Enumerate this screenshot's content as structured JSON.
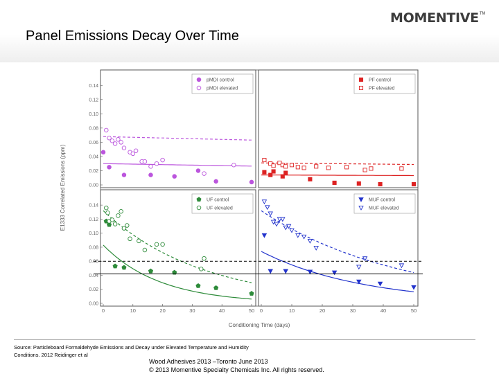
{
  "slide": {
    "title": "Panel Emissions Decay Over Time",
    "logo_text": "MOMENTIVE",
    "logo_tm": "TM",
    "source_line1": "Source: Particleboard Formaldehyde Emissions and Decay under Elevated Temperature and Humidity",
    "source_line2": "Conditions.  2012 Reidinger et al",
    "footer_line1": "Wood Adhesives 2013 –Toronto June 2013",
    "footer_line2": "© 2013 Momentive Specialty Chemicals Inc. All rights reserved."
  },
  "chart_data": {
    "type": "scatter",
    "ylabel": "E1333 Correlated Emissions (ppm)",
    "xlabel": "Conditioning Time (days)",
    "xlim": [
      0,
      50
    ],
    "ylim": [
      0,
      0.15
    ],
    "x_ticks": [
      "0",
      "10",
      "20",
      "30",
      "40",
      "50"
    ],
    "y_ticks": [
      "0.00",
      "0.02",
      "0.04",
      "0.06",
      "0.08",
      "0.10",
      "0.12",
      "0.14"
    ],
    "reference_lines": [
      {
        "y": 0.06,
        "style": "dashed"
      },
      {
        "y": 0.042,
        "style": "solid"
      }
    ],
    "panels": [
      {
        "color": "#bb55dd",
        "legend_position": "top-right",
        "series": [
          {
            "name": "pMDI control",
            "marker": "circle",
            "filled": true,
            "points": [
              [
                0,
                0.046
              ],
              [
                2,
                0.025
              ],
              [
                7,
                0.014
              ],
              [
                16,
                0.014
              ],
              [
                24,
                0.012
              ],
              [
                32,
                0.02
              ],
              [
                38,
                0.005
              ],
              [
                50,
                0.004
              ]
            ],
            "fit": [
              0.03,
              0.0025
            ]
          },
          {
            "name": "pMDI elevated",
            "marker": "circle",
            "filled": false,
            "points": [
              [
                1,
                0.077
              ],
              [
                2,
                0.066
              ],
              [
                3,
                0.062
              ],
              [
                4,
                0.058
              ],
              [
                5,
                0.064
              ],
              [
                6,
                0.06
              ],
              [
                7,
                0.052
              ],
              [
                9,
                0.046
              ],
              [
                10,
                0.044
              ],
              [
                11,
                0.048
              ],
              [
                13,
                0.033
              ],
              [
                14,
                0.033
              ],
              [
                16,
                0.026
              ],
              [
                18,
                0.03
              ],
              [
                20,
                0.035
              ],
              [
                34,
                0.016
              ],
              [
                44,
                0.028
              ]
            ],
            "fit": [
              0.068,
              0.0015
            ]
          }
        ]
      },
      {
        "color": "#dd2222",
        "legend_position": "top-right",
        "series": [
          {
            "name": "PF control",
            "marker": "square",
            "filled": true,
            "points": [
              [
                1,
                0.018
              ],
              [
                3,
                0.014
              ],
              [
                4,
                0.019
              ],
              [
                7,
                0.012
              ],
              [
                8,
                0.017
              ],
              [
                16,
                0.008
              ],
              [
                24,
                0.003
              ],
              [
                32,
                0.002
              ],
              [
                39,
                0.001
              ],
              [
                50,
                0.001
              ]
            ],
            "fit": [
              0.014,
              0.0012
            ]
          },
          {
            "name": "PF elevated",
            "marker": "square",
            "filled": false,
            "points": [
              [
                1,
                0.035
              ],
              [
                3,
                0.03
              ],
              [
                4,
                0.027
              ],
              [
                6,
                0.031
              ],
              [
                7,
                0.028
              ],
              [
                8,
                0.026
              ],
              [
                10,
                0.028
              ],
              [
                12,
                0.025
              ],
              [
                14,
                0.024
              ],
              [
                18,
                0.026
              ],
              [
                22,
                0.024
              ],
              [
                28,
                0.025
              ],
              [
                34,
                0.021
              ],
              [
                36,
                0.023
              ],
              [
                46,
                0.023
              ]
            ],
            "fit": [
              0.031,
              0.0015
            ]
          }
        ]
      },
      {
        "color": "#2e8b3a",
        "legend_position": "top-right",
        "series": [
          {
            "name": "UF control",
            "marker": "pentagon",
            "filled": true,
            "points": [
              [
                1,
                0.117
              ],
              [
                2,
                0.112
              ],
              [
                4,
                0.053
              ],
              [
                7,
                0.051
              ],
              [
                16,
                0.046
              ],
              [
                24,
                0.044
              ],
              [
                32,
                0.025
              ],
              [
                38,
                0.022
              ],
              [
                50,
                0.014
              ]
            ],
            "fit": [
              0.083,
              0.052
            ]
          },
          {
            "name": "UF elevated",
            "marker": "circle",
            "filled": false,
            "points": [
              [
                1,
                0.136
              ],
              [
                1.5,
                0.129
              ],
              [
                2,
                0.117
              ],
              [
                3,
                0.119
              ],
              [
                4,
                0.113
              ],
              [
                5,
                0.125
              ],
              [
                6,
                0.131
              ],
              [
                7,
                0.107
              ],
              [
                8,
                0.111
              ],
              [
                9,
                0.092
              ],
              [
                12,
                0.089
              ],
              [
                14,
                0.076
              ],
              [
                18,
                0.084
              ],
              [
                20,
                0.084
              ],
              [
                33,
                0.049
              ],
              [
                34,
                0.064
              ]
            ],
            "fit": [
              0.132,
              0.03
            ]
          }
        ]
      },
      {
        "color": "#2233cc",
        "legend_position": "top-right",
        "series": [
          {
            "name": "MUF control",
            "marker": "triangle-down",
            "filled": true,
            "points": [
              [
                1,
                0.097
              ],
              [
                3,
                0.046
              ],
              [
                8,
                0.046
              ],
              [
                16,
                0.045
              ],
              [
                24,
                0.044
              ],
              [
                32,
                0.031
              ],
              [
                39,
                0.028
              ],
              [
                50,
                0.023
              ]
            ],
            "fit": [
              0.074,
              0.03
            ]
          },
          {
            "name": "MUF elevated",
            "marker": "triangle-down",
            "filled": false,
            "points": [
              [
                1,
                0.145
              ],
              [
                2,
                0.137
              ],
              [
                3,
                0.128
              ],
              [
                4,
                0.116
              ],
              [
                5,
                0.113
              ],
              [
                6,
                0.12
              ],
              [
                7,
                0.12
              ],
              [
                8,
                0.108
              ],
              [
                9,
                0.11
              ],
              [
                10,
                0.104
              ],
              [
                12,
                0.097
              ],
              [
                14,
                0.095
              ],
              [
                16,
                0.089
              ],
              [
                18,
                0.079
              ],
              [
                32,
                0.052
              ],
              [
                34,
                0.064
              ],
              [
                46,
                0.054
              ]
            ],
            "fit": [
              0.132,
              0.022
            ]
          }
        ]
      }
    ]
  }
}
